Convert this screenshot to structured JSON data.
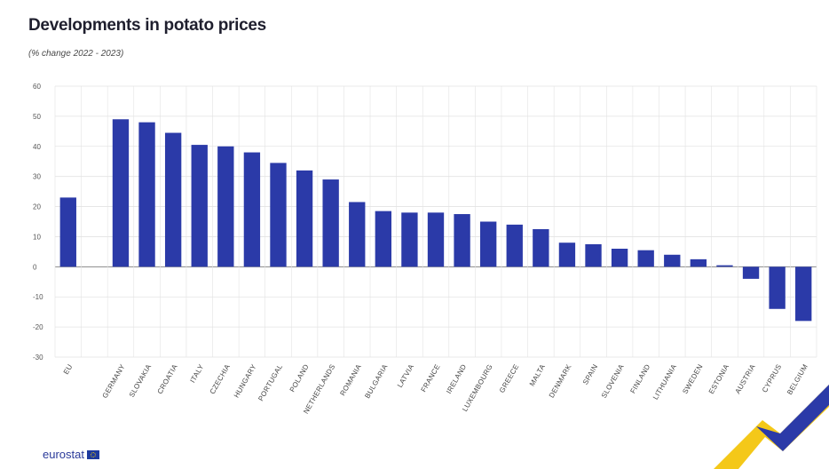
{
  "header": {
    "title": "Developments in potato prices",
    "subtitle": "(% change 2022 - 2023)"
  },
  "footer": {
    "brand": "eurostat"
  },
  "colors": {
    "bar": "#2b3aa8",
    "grid": "#e3e3e3",
    "zero": "#8a8a8a"
  },
  "chart_data": {
    "type": "bar",
    "title": "Developments in potato prices",
    "subtitle": "(% change 2022 - 2023)",
    "xlabel": "",
    "ylabel": "",
    "ylim": [
      -30,
      60
    ],
    "yticks": [
      60,
      50,
      40,
      30,
      20,
      10,
      0,
      -10,
      -20,
      -30
    ],
    "grid": true,
    "categories": [
      "EU",
      "",
      "GERMANY",
      "SLOVAKIA",
      "CROATIA",
      "ITALY",
      "CZECHIA",
      "HUNGARY",
      "PORTUGAL",
      "POLAND",
      "NETHERLANDS",
      "ROMANIA",
      "BULGARIA",
      "LATVIA",
      "FRANCE",
      "IRELAND",
      "LUXEMBOURG",
      "GREECE",
      "MALTA",
      "DENMARK",
      "SPAIN",
      "SLOVENIA",
      "FINLAND",
      "LITHUANIA",
      "SWEDEN",
      "ESTONIA",
      "AUSTRIA",
      "CYPRUS",
      "BELGIUM"
    ],
    "values": [
      23,
      null,
      49,
      48,
      44.5,
      40.5,
      40,
      38,
      34.5,
      32,
      29,
      21.5,
      18.5,
      18,
      18,
      17.5,
      15,
      14,
      12.5,
      8,
      7.5,
      6,
      5.5,
      4,
      2.5,
      0.5,
      -4,
      -14,
      -18
    ]
  }
}
